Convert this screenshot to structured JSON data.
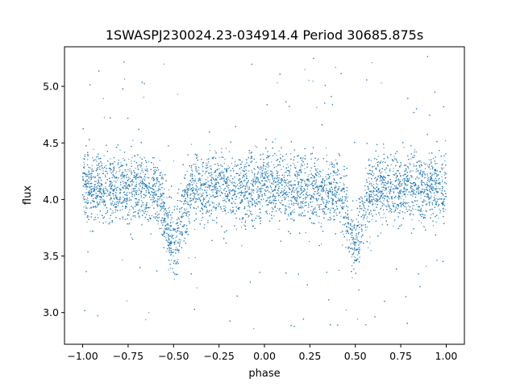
{
  "chart_data": {
    "type": "scatter",
    "title": "1SWASPJ230024.23-034914.4 Period 30685.875s",
    "xlabel": "phase",
    "ylabel": "flux",
    "xlim": [
      -1.1,
      1.1
    ],
    "ylim": [
      2.72,
      5.35
    ],
    "x_ticks": [
      -1.0,
      -0.75,
      -0.5,
      -0.25,
      0.0,
      0.25,
      0.5,
      0.75,
      1.0
    ],
    "x_tick_labels": [
      "−1.00",
      "−0.75",
      "−0.50",
      "−0.25",
      "0.00",
      "0.25",
      "0.50",
      "0.75",
      "1.00"
    ],
    "y_ticks": [
      3.0,
      3.5,
      4.0,
      4.5,
      5.0
    ],
    "y_tick_labels": [
      "3.0",
      "3.5",
      "4.0",
      "4.5",
      "5.0"
    ],
    "grid": false,
    "legend": "none",
    "marker_color": "#1f77b4",
    "series": [
      {
        "x_range": [
          -1.0,
          1.0
        ],
        "baseline_flux": 4.1,
        "scatter_sigma": 0.15,
        "eclipses": [
          {
            "phase_center": -0.5,
            "min_flux": 3.6,
            "half_width": 0.07
          },
          {
            "phase_center": 0.5,
            "min_flux": 3.6,
            "half_width": 0.07
          }
        ],
        "outlier_flux_range": [
          2.85,
          5.27
        ]
      }
    ]
  }
}
